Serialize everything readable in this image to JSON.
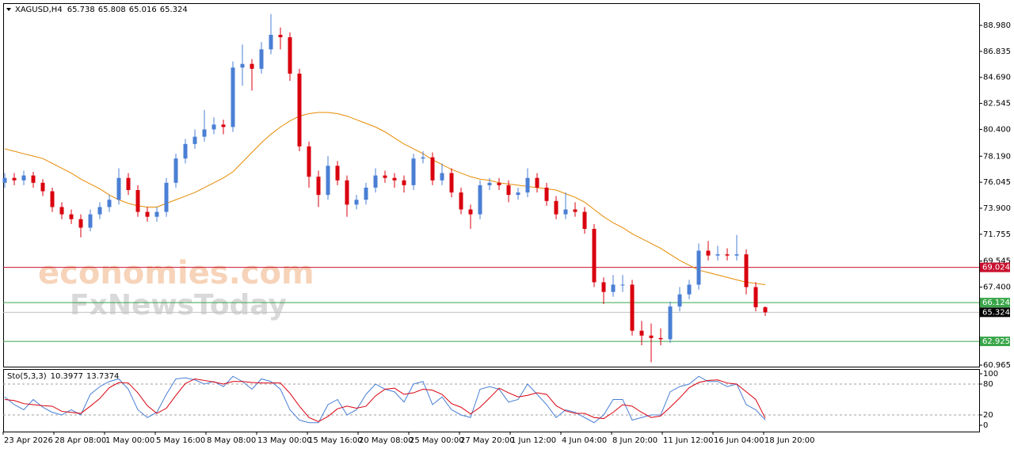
{
  "chart_data": [
    {
      "type": "candlestick",
      "title": "XAGUSD,H4",
      "up_color": "#4a7fd4",
      "down_color": "#d9000e",
      "candles": [
        [
          76.0,
          76.8,
          75.6,
          76.4
        ],
        [
          76.4,
          76.8,
          75.8,
          76.2
        ],
        [
          76.2,
          77.0,
          75.8,
          76.6
        ],
        [
          76.6,
          76.9,
          75.6,
          76.0
        ],
        [
          76.0,
          76.3,
          74.9,
          75.3
        ],
        [
          75.3,
          75.6,
          73.6,
          74.0
        ],
        [
          74.0,
          74.4,
          73.0,
          73.4
        ],
        [
          73.4,
          73.8,
          72.6,
          73.0
        ],
        [
          73.0,
          73.4,
          71.5,
          72.3
        ],
        [
          72.3,
          73.8,
          72.0,
          73.4
        ],
        [
          73.4,
          74.4,
          73.0,
          74.0
        ],
        [
          74.0,
          75.0,
          73.6,
          74.6
        ],
        [
          74.6,
          77.2,
          74.2,
          76.4
        ],
        [
          76.4,
          76.8,
          75.0,
          75.4
        ],
        [
          75.4,
          75.8,
          73.2,
          73.6
        ],
        [
          73.6,
          74.0,
          72.8,
          73.2
        ],
        [
          73.2,
          74.0,
          72.8,
          73.6
        ],
        [
          73.6,
          76.4,
          73.2,
          76.0
        ],
        [
          76.0,
          78.4,
          75.6,
          78.0
        ],
        [
          78.0,
          79.6,
          77.6,
          79.2
        ],
        [
          79.2,
          80.4,
          78.8,
          79.8
        ],
        [
          79.8,
          82.0,
          79.4,
          80.4
        ],
        [
          80.4,
          81.4,
          80.0,
          80.8
        ],
        [
          80.8,
          81.2,
          80.0,
          80.6
        ],
        [
          80.6,
          86.0,
          80.2,
          85.5
        ],
        [
          85.5,
          87.4,
          84.0,
          85.8
        ],
        [
          85.8,
          86.2,
          83.6,
          85.4
        ],
        [
          85.4,
          87.6,
          85.0,
          87.0
        ],
        [
          87.0,
          89.9,
          86.6,
          88.2
        ],
        [
          88.2,
          88.8,
          87.0,
          88.0
        ],
        [
          88.0,
          88.4,
          84.4,
          85.0
        ],
        [
          85.0,
          85.4,
          78.6,
          79.0
        ],
        [
          79.0,
          79.4,
          75.6,
          76.5
        ],
        [
          76.5,
          77.0,
          74.0,
          75.0
        ],
        [
          75.0,
          78.2,
          74.6,
          77.4
        ],
        [
          77.4,
          77.8,
          75.8,
          76.2
        ],
        [
          76.2,
          76.6,
          73.2,
          74.2
        ],
        [
          74.2,
          75.0,
          73.8,
          74.6
        ],
        [
          74.6,
          76.0,
          74.2,
          75.6
        ],
        [
          75.6,
          77.2,
          75.2,
          76.6
        ],
        [
          76.6,
          77.0,
          76.0,
          76.4
        ],
        [
          76.4,
          76.8,
          75.6,
          76.2
        ],
        [
          76.2,
          76.6,
          75.2,
          75.8
        ],
        [
          75.8,
          78.4,
          75.4,
          78.0
        ],
        [
          78.0,
          78.6,
          77.6,
          78.1
        ],
        [
          78.1,
          78.5,
          75.8,
          76.2
        ],
        [
          76.2,
          77.6,
          75.8,
          76.8
        ],
        [
          76.8,
          77.2,
          74.8,
          75.2
        ],
        [
          75.2,
          75.6,
          73.4,
          73.8
        ],
        [
          73.8,
          74.2,
          72.2,
          73.4
        ],
        [
          73.4,
          76.2,
          73.0,
          75.8
        ],
        [
          75.8,
          76.4,
          75.4,
          76.0
        ],
        [
          76.0,
          76.4,
          75.4,
          75.8
        ],
        [
          75.8,
          76.2,
          74.4,
          75.0
        ],
        [
          75.0,
          75.6,
          74.6,
          75.2
        ],
        [
          75.2,
          77.2,
          74.8,
          76.4
        ],
        [
          76.4,
          76.8,
          75.2,
          75.6
        ],
        [
          75.6,
          76.0,
          74.1,
          74.5
        ],
        [
          74.5,
          74.9,
          73.0,
          73.4
        ],
        [
          73.4,
          75.2,
          73.0,
          73.8
        ],
        [
          73.8,
          74.4,
          73.2,
          73.6
        ],
        [
          73.6,
          74.0,
          71.8,
          72.2
        ],
        [
          72.2,
          72.6,
          67.4,
          67.8
        ],
        [
          67.8,
          68.2,
          66.0,
          67.0
        ],
        [
          67.0,
          68.4,
          66.6,
          67.6
        ],
        [
          67.6,
          68.4,
          67.0,
          67.6
        ],
        [
          67.6,
          68.0,
          63.4,
          63.8
        ],
        [
          63.8,
          64.6,
          62.6,
          63.4
        ],
        [
          63.4,
          64.4,
          61.2,
          63.2
        ],
        [
          63.2,
          64.0,
          62.6,
          63.1
        ],
        [
          63.1,
          66.2,
          62.8,
          65.8
        ],
        [
          65.8,
          67.4,
          65.4,
          66.8
        ],
        [
          66.8,
          68.0,
          66.4,
          67.6
        ],
        [
          67.6,
          71.0,
          67.2,
          70.4
        ],
        [
          70.4,
          71.2,
          69.6,
          70.0
        ],
        [
          70.0,
          70.8,
          69.6,
          70.1
        ],
        [
          70.1,
          70.6,
          69.6,
          70.0
        ],
        [
          70.0,
          71.7,
          69.6,
          70.1
        ],
        [
          70.1,
          70.5,
          66.8,
          67.4
        ],
        [
          67.4,
          67.8,
          65.4,
          65.738
        ],
        [
          65.738,
          65.808,
          65.016,
          65.324
        ]
      ],
      "series": [
        {
          "color": "#e68a00",
          "values": [
            78.8,
            78.6,
            78.4,
            78.2,
            78.0,
            77.6,
            77.2,
            76.8,
            76.3,
            75.9,
            75.5,
            75.0,
            74.6,
            74.3,
            74.1,
            74.0,
            74.0,
            74.3,
            74.6,
            74.9,
            75.2,
            75.6,
            76.0,
            76.4,
            76.9,
            77.7,
            78.5,
            79.3,
            80.0,
            80.6,
            81.1,
            81.5,
            81.7,
            81.8,
            81.8,
            81.7,
            81.5,
            81.2,
            80.9,
            80.6,
            80.2,
            79.7,
            79.2,
            78.8,
            78.4,
            77.9,
            77.5,
            77.1,
            76.8,
            76.5,
            76.3,
            76.2,
            76.0,
            75.9,
            75.8,
            75.7,
            75.6,
            75.5,
            75.4,
            75.1,
            74.8,
            74.4,
            73.8,
            73.2,
            72.7,
            72.3,
            71.8,
            71.4,
            71.0,
            70.6,
            70.1,
            69.6,
            69.2,
            68.8,
            68.6,
            68.4,
            68.2,
            68.0,
            67.8,
            67.7,
            67.6
          ]
        }
      ],
      "levels": [
        {
          "value": 69.024,
          "color": "#c8102e"
        },
        {
          "value": 66.124,
          "color": "#3aa64a"
        },
        {
          "value": 62.925,
          "color": "#3aa64a"
        }
      ],
      "ylim": [
        60.84,
        90.81
      ],
      "yticks": [
        {
          "value": 88.98,
          "label": "88.980"
        },
        {
          "value": 86.835,
          "label": "86.835"
        },
        {
          "value": 84.69,
          "label": "84.690"
        },
        {
          "value": 82.545,
          "label": "82.545"
        },
        {
          "value": 80.4,
          "label": "80.400"
        },
        {
          "value": 78.19,
          "label": "78.190"
        },
        {
          "value": 76.045,
          "label": "76.045"
        },
        {
          "value": 73.9,
          "label": "73.900"
        },
        {
          "value": 71.755,
          "label": "71.755"
        },
        {
          "value": 69.545,
          "label": "69.545"
        },
        {
          "value": 67.4,
          "label": "67.400"
        },
        {
          "value": 60.965,
          "label": "60.965"
        }
      ],
      "time_labels": [
        "23 Apr 2026",
        "28 Apr 08:00",
        "1 May 00:00",
        "5 May 16:00",
        "8 May 08:00",
        "13 May 00:00",
        "15 May 16:00",
        "20 May 08:00",
        "25 May 00:00",
        "27 May 20:00",
        "1 Jun 12:00",
        "4 Jun 04:00",
        "8 Jun 20:00",
        "11 Jun 12:00",
        "16 Jun 04:00",
        "18 Jun 20:00"
      ],
      "watermark": [
        "economies.com",
        "FxNewsToday"
      ]
    },
    {
      "type": "line",
      "title": "Sto(5,3,3)",
      "series": [
        {
          "color": "#4a7fd4",
          "values": [
            55,
            40,
            30,
            50,
            35,
            25,
            20,
            30,
            20,
            60,
            75,
            85,
            90,
            70,
            30,
            15,
            25,
            60,
            90,
            92,
            88,
            80,
            85,
            75,
            95,
            85,
            70,
            90,
            85,
            70,
            30,
            10,
            5,
            5,
            40,
            50,
            20,
            30,
            60,
            80,
            70,
            65,
            45,
            80,
            85,
            40,
            55,
            30,
            20,
            15,
            70,
            75,
            70,
            45,
            50,
            80,
            60,
            40,
            15,
            30,
            25,
            15,
            5,
            20,
            50,
            50,
            10,
            15,
            20,
            20,
            65,
            75,
            80,
            95,
            85,
            85,
            75,
            80,
            40,
            30,
            10.3977
          ]
        },
        {
          "color": "#d9000e",
          "values": [
            50,
            48,
            42,
            40,
            38,
            37,
            27,
            25,
            23,
            37,
            52,
            73,
            83,
            82,
            63,
            38,
            23,
            33,
            58,
            81,
            90,
            87,
            84,
            80,
            85,
            85,
            83,
            82,
            82,
            82,
            62,
            37,
            15,
            7,
            17,
            32,
            37,
            33,
            37,
            57,
            70,
            72,
            60,
            63,
            70,
            68,
            60,
            42,
            35,
            22,
            35,
            53,
            72,
            63,
            55,
            58,
            63,
            60,
            38,
            28,
            23,
            23,
            15,
            13,
            25,
            40,
            37,
            25,
            15,
            18,
            35,
            53,
            73,
            83,
            87,
            88,
            82,
            80,
            65,
            50,
            13.7374
          ]
        }
      ],
      "ylim": [
        -12.3,
        109.2
      ],
      "yticks": [
        100,
        80,
        20,
        0
      ],
      "levels": [
        80,
        20
      ]
    }
  ]
}
